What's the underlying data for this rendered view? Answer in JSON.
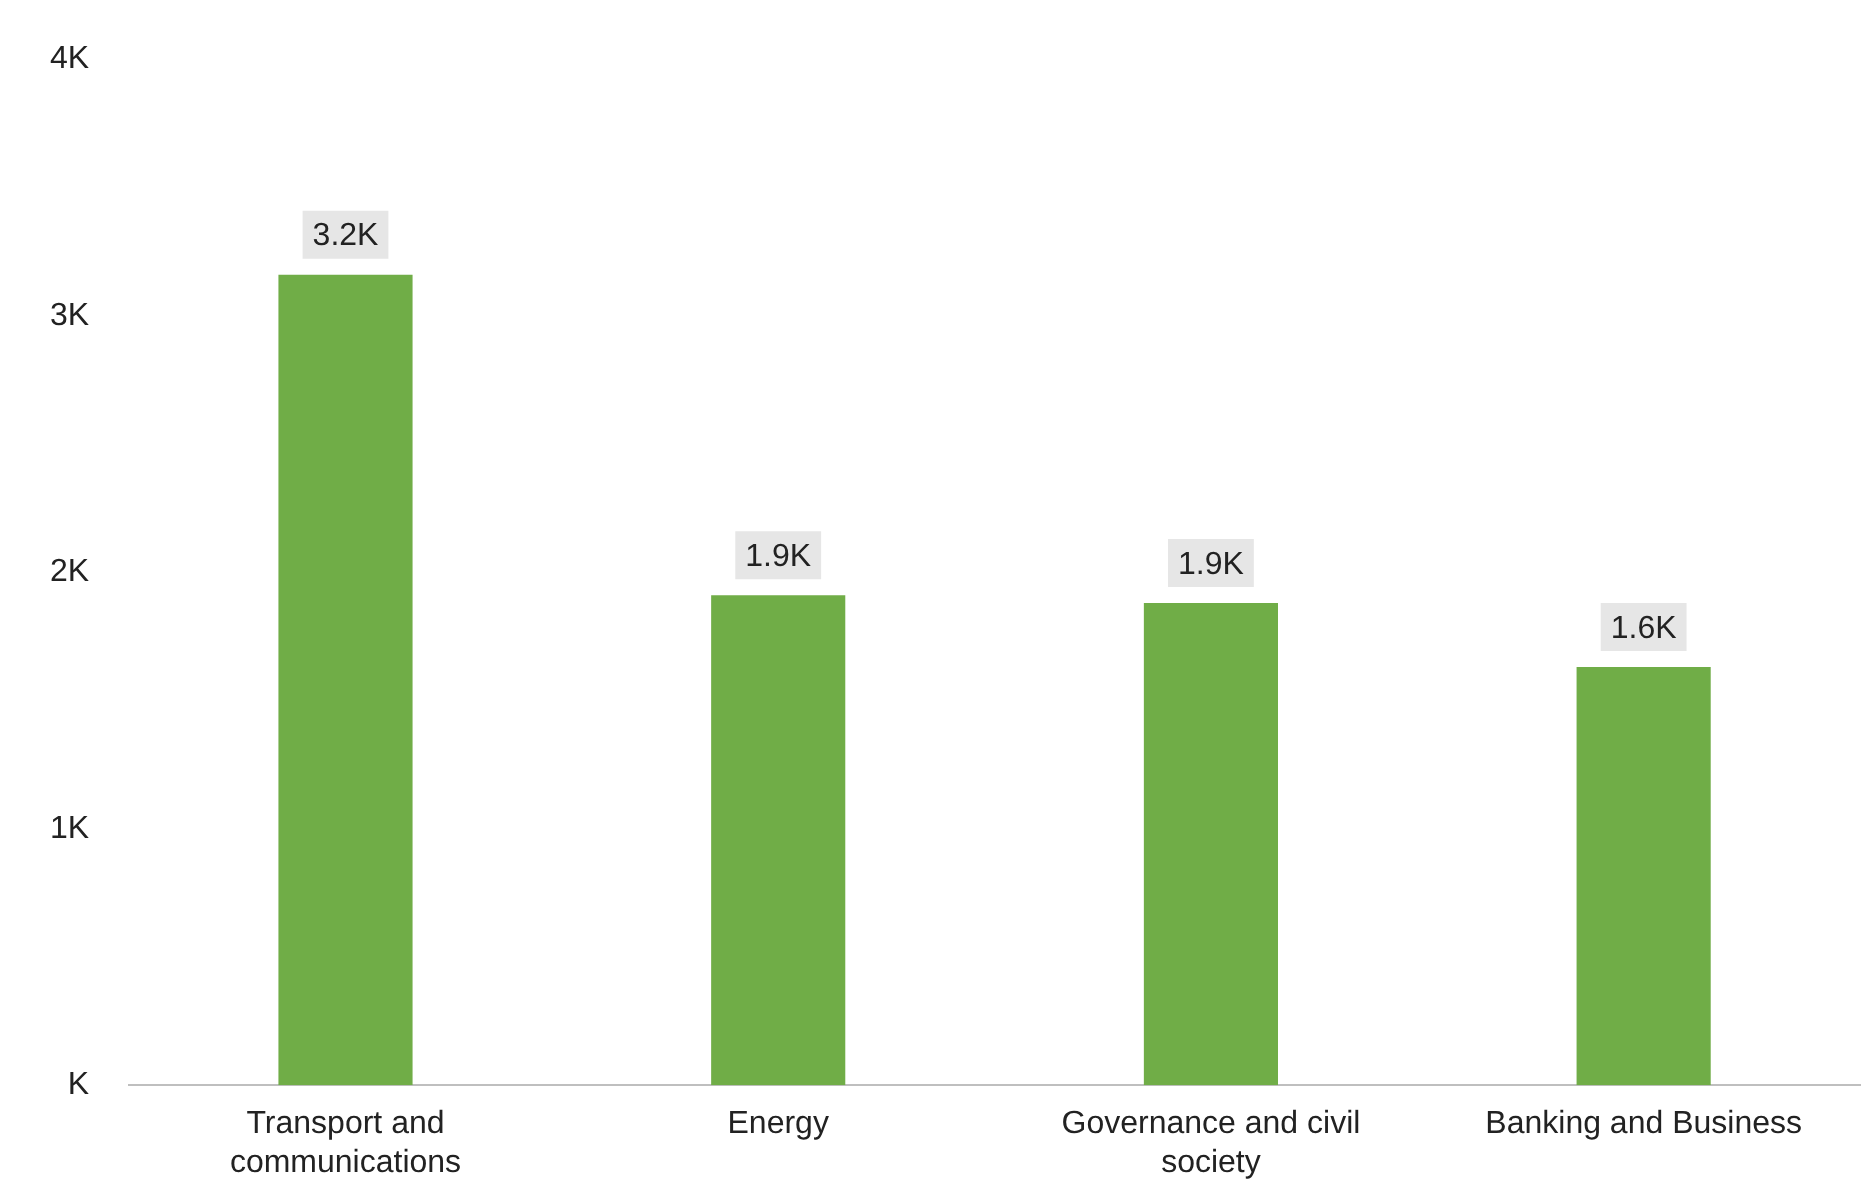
{
  "chart_data": {
    "type": "bar",
    "categories": [
      "Transport and communications",
      "Energy",
      "Governance and civil society",
      "Banking and Business"
    ],
    "values": [
      3160,
      1910,
      1880,
      1630
    ],
    "value_labels": [
      "3.2K",
      "1.9K",
      "1.9K",
      "1.6K"
    ],
    "color": "#70ad47",
    "ylim": [
      0,
      4000
    ],
    "yticks": [
      {
        "value": 0,
        "label": "K"
      },
      {
        "value": 1000,
        "label": "1K"
      },
      {
        "value": 2000,
        "label": "2K"
      },
      {
        "value": 3000,
        "label": "3K"
      },
      {
        "value": 4000,
        "label": "4K"
      }
    ],
    "grid": false,
    "legend": false
  }
}
